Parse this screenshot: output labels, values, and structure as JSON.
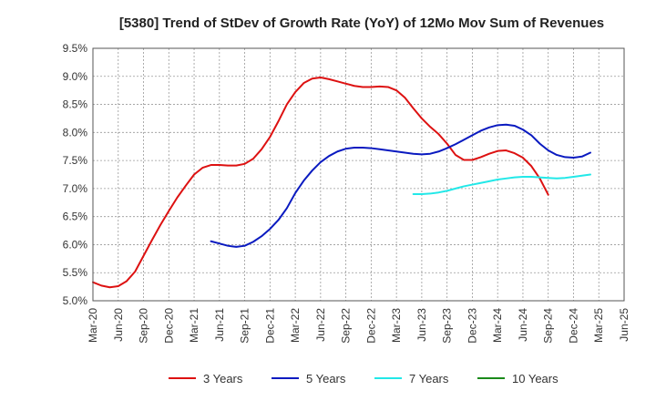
{
  "chart_data": {
    "type": "line",
    "title": "[5380]  Trend of StDev of Growth Rate (YoY) of 12Mo Mov Sum of Revenues",
    "xlabel": "",
    "ylabel": "",
    "ylim": [
      5.0,
      9.5
    ],
    "ytick_labels": [
      "5.0%",
      "5.5%",
      "6.0%",
      "6.5%",
      "7.0%",
      "7.5%",
      "8.0%",
      "8.5%",
      "9.0%",
      "9.5%"
    ],
    "ytick_values": [
      5.0,
      5.5,
      6.0,
      6.5,
      7.0,
      7.5,
      8.0,
      8.5,
      9.0,
      9.5
    ],
    "xtick_labels": [
      "Mar-20",
      "Jun-20",
      "Sep-20",
      "Dec-20",
      "Mar-21",
      "Jun-21",
      "Sep-21",
      "Dec-21",
      "Mar-22",
      "Jun-22",
      "Sep-22",
      "Dec-22",
      "Mar-23",
      "Jun-23",
      "Sep-23",
      "Dec-23",
      "Mar-24",
      "Jun-24",
      "Sep-24",
      "Dec-24",
      "Mar-25",
      "Jun-25"
    ],
    "grid": true,
    "legend_position": "bottom",
    "series": [
      {
        "name": "3 Years",
        "color": "#dd1111",
        "start_index": 0,
        "values": [
          5.33,
          5.27,
          5.24,
          5.26,
          5.35,
          5.52,
          5.8,
          6.08,
          6.35,
          6.6,
          6.84,
          7.05,
          7.25,
          7.37,
          7.42,
          7.42,
          7.41,
          7.41,
          7.44,
          7.53,
          7.7,
          7.92,
          8.2,
          8.5,
          8.72,
          8.88,
          8.96,
          8.98,
          8.95,
          8.91,
          8.87,
          8.83,
          8.81,
          8.81,
          8.82,
          8.81,
          8.75,
          8.62,
          8.43,
          8.25,
          8.1,
          7.97,
          7.8,
          7.6,
          7.51,
          7.51,
          7.56,
          7.62,
          7.67,
          7.68,
          7.63,
          7.55,
          7.4,
          7.18,
          6.89
        ]
      },
      {
        "name": "5 Years",
        "color": "#0a1ac0",
        "start_index": 14,
        "values": [
          6.06,
          6.02,
          5.98,
          5.96,
          5.98,
          6.05,
          6.15,
          6.28,
          6.44,
          6.65,
          6.92,
          7.14,
          7.32,
          7.47,
          7.58,
          7.66,
          7.71,
          7.73,
          7.73,
          7.72,
          7.7,
          7.68,
          7.66,
          7.64,
          7.62,
          7.61,
          7.62,
          7.66,
          7.72,
          7.79,
          7.87,
          7.95,
          8.03,
          8.09,
          8.13,
          8.14,
          8.12,
          8.05,
          7.95,
          7.8,
          7.68,
          7.6,
          7.56,
          7.55,
          7.57,
          7.64
        ]
      },
      {
        "name": "7 Years",
        "color": "#22e8e8",
        "start_index": 38,
        "values": [
          6.9,
          6.9,
          6.91,
          6.93,
          6.96,
          7.0,
          7.04,
          7.07,
          7.1,
          7.13,
          7.16,
          7.18,
          7.2,
          7.21,
          7.21,
          7.2,
          7.19,
          7.18,
          7.19,
          7.21,
          7.23,
          7.25
        ]
      },
      {
        "name": "10 Years",
        "color": "#1a8a1a",
        "start_index": 0,
        "values": []
      }
    ]
  }
}
